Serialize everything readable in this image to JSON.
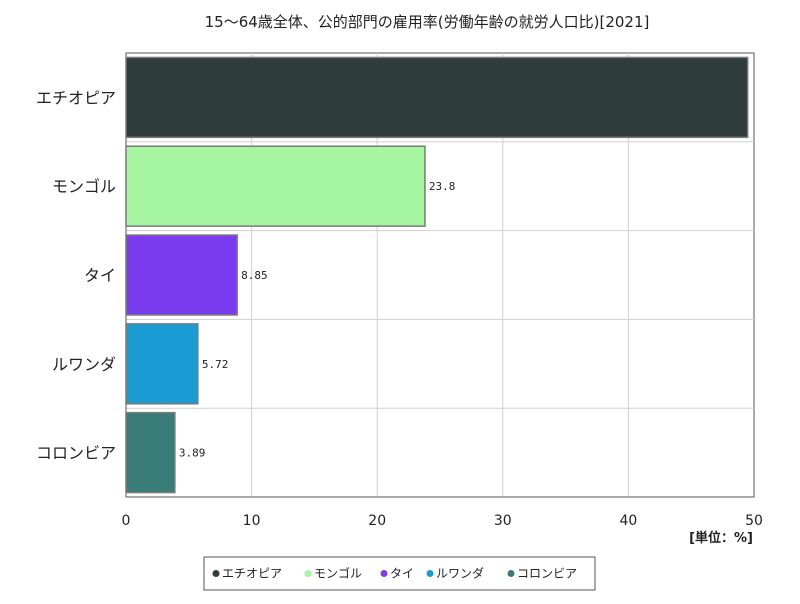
{
  "chart_data": {
    "type": "bar",
    "orientation": "horizontal",
    "title": "15〜64歳全体、公的部門の雇用率(労働年齢の就労人口比)[2021]",
    "categories": [
      "エチオピア",
      "モンゴル",
      "タイ",
      "ルワンダ",
      "コロンビア"
    ],
    "values": [
      49.5,
      23.8,
      8.85,
      5.72,
      3.89
    ],
    "data_labels": [
      "",
      "23.8",
      "8.85",
      "5.72",
      "3.89"
    ],
    "colors": [
      "#2e3d3b",
      "#a6f5a0",
      "#7b3cf0",
      "#1a9bd3",
      "#3a7c78"
    ],
    "xlim": [
      0,
      50
    ],
    "xticks": [
      0,
      10,
      20,
      30,
      40,
      50
    ],
    "unit": "[単位：%]",
    "grid": true,
    "legend": {
      "position": "bottom",
      "entries": [
        "エチオピア",
        "モンゴル",
        "タイ",
        "ルワンダ",
        "コロンビア"
      ]
    }
  }
}
